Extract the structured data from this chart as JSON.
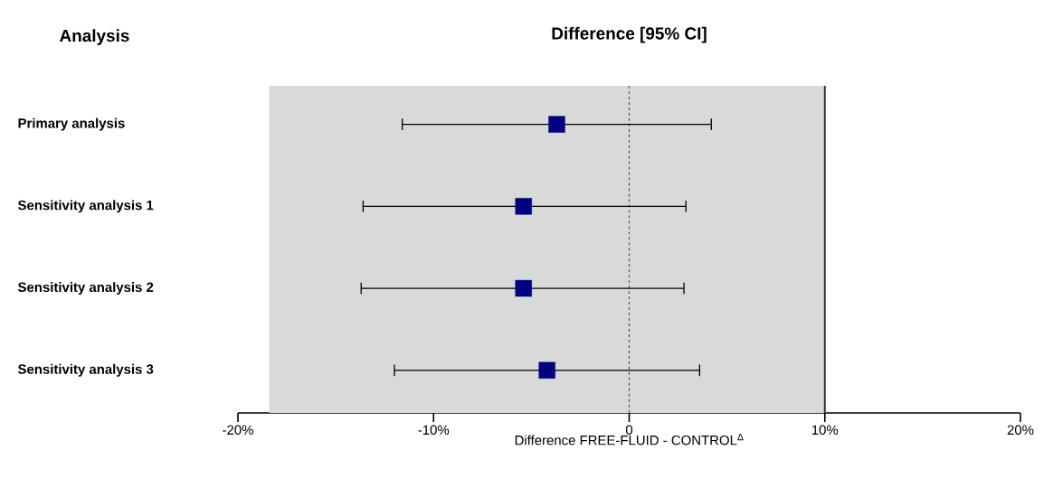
{
  "chart_data": {
    "type": "scatter",
    "orientation": "horizontal",
    "title": "Difference [95% CI]",
    "annotations": [
      "Analysis"
    ],
    "xlabel": "Difference FREE-FLUID - CONTROL$^{Δ}$",
    "categories": [
      "Primary analysis",
      "Sensitivity analysis 1",
      "Sensitivity analysis 2",
      "Sensitivity analysis 3"
    ],
    "values": [
      -3.7,
      -5.4,
      -5.4,
      -4.2
    ],
    "errors": [
      [
        -11.6,
        4.2
      ],
      [
        -13.6,
        2.9
      ],
      [
        -13.7,
        2.8
      ],
      [
        -12.0,
        3.6
      ]
    ],
    "color": "#000080",
    "marker": "square",
    "xlim": [
      -20,
      20
    ],
    "xticks": [
      {
        "value": -20,
        "label": "-20%"
      },
      {
        "value": -10,
        "label": "-10%"
      },
      {
        "value": 0,
        "label": "0"
      },
      {
        "value": 10,
        "label": "10%"
      },
      {
        "value": 20,
        "label": "20%"
      }
    ],
    "bands": [
      {
        "axis": "x",
        "from": -18.4,
        "to": 10,
        "color": "#d9d9d9"
      }
    ],
    "ref_lines": [
      {
        "axis": "x",
        "value": 0,
        "line_style": "dashed",
        "color": "#555555"
      },
      {
        "axis": "x",
        "value": 10,
        "line_style": "solid",
        "color": "#333333"
      }
    ],
    "grid": false
  }
}
